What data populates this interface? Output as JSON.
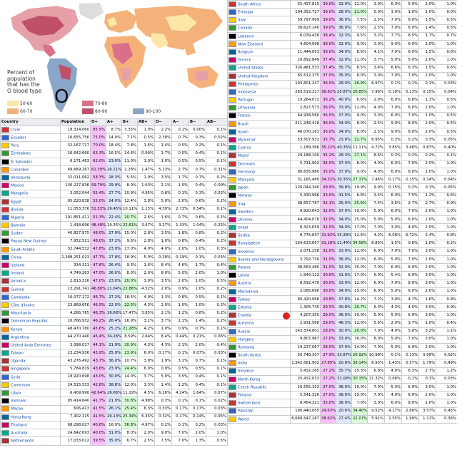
{
  "map": {
    "legend_lines": [
      "Percent of",
      "population",
      "that has the",
      "O blood type"
    ],
    "big_letter": "O",
    "legend_items": [
      {
        "label": "50-60",
        "color": "#fde7a8"
      },
      {
        "label": "60-70",
        "color": "#f4b27a"
      },
      {
        "label": "70-80",
        "color": "#d9708a"
      },
      {
        "label": "80-90",
        "color": "#c0506a"
      },
      {
        "label": "90-100",
        "color": "#8aa6c8"
      }
    ]
  },
  "table_headers": [
    "Country",
    "Population",
    "O+",
    "A+",
    "B+",
    "AB+",
    "O−",
    "A−",
    "B−",
    "AB−"
  ],
  "left_rows": [
    [
      "Chile",
      "18,314,060",
      "85.5%",
      "8.7%",
      "3.35%",
      "1.0%",
      "2.2%",
      "0.1%",
      "0.00%",
      "0.1%"
    ],
    [
      "Ecuador",
      "16,655,756",
      "75.0%",
      "14.0%",
      "7.1%",
      "0.5%",
      "2.38%",
      "0.7%",
      "0.3%",
      "0.02%"
    ],
    [
      "Peru",
      "32,167,717",
      "70.0%",
      "18.4%",
      "7.8%",
      "1.6%",
      "1.4%",
      "0.5%",
      "0.2%",
      "0.1%"
    ],
    [
      "Zimbabwe",
      "16,642,660",
      "63.3%",
      "16.5%",
      "14.6%",
      "0.99%",
      "1.7%",
      "0.5%",
      "0.4%",
      "0.1%"
    ],
    [
      "El Salvador",
      "6,171,483",
      "62.0%",
      "23.0%",
      "11.0%",
      "1.0%",
      "1.0%",
      "0.5%",
      "0.5%",
      "0.1%"
    ],
    [
      "Colombia",
      "49,669,267",
      "61.30%",
      "26.11%",
      "2.28%",
      "1.47%",
      "5.13%",
      "2.7%",
      "0.7%",
      "0.31%"
    ],
    [
      "Venezuela",
      "32,011,062",
      "58.3%",
      "28.3%",
      "5.6%",
      "1.9%",
      "3.5%",
      "1.7%",
      "0.7%",
      "0.2%"
    ],
    [
      "Mexico",
      "130,227,836",
      "59.79%",
      "29.9%",
      "8.0%",
      "1.63%",
      "2.1%",
      "1.5%",
      "0.4%",
      "0.09%"
    ],
    [
      "Mongolia",
      "3,052,044",
      "55.4%",
      "27.7%",
      "10.9%",
      "4.95%",
      "0.6%",
      "0.1%",
      "0.3%",
      "0.02%"
    ],
    [
      "Egypt",
      "95,220,838",
      "52.0%",
      "24.0%",
      "12.4%",
      "3.8%",
      "5.0%",
      "2.0%",
      "0.6%",
      "0.2%"
    ],
    [
      "Bolivia",
      "11,053,376",
      "51.53%",
      "29.45%",
      "10.11%",
      "1.15%",
      "4.39%",
      "2.73%",
      "0.54%",
      "0.1%"
    ],
    [
      "Nigeria",
      "191,851,411",
      "51.3%",
      "22.4%",
      "20.7%",
      "2.6%",
      "1.6%",
      "0.7%",
      "0.6%",
      "0.1%"
    ],
    [
      "Bahrain",
      "1,418,696",
      "48.48%",
      "19.35%",
      "22.61%",
      "3.67%",
      "3.27%",
      "1.33%",
      "1.04%",
      "0.25%"
    ],
    [
      "Sudan",
      "40,827,975",
      "48.0%",
      "27.9%",
      "15.0%",
      "2.8%",
      "3.5%",
      "1.8%",
      "0.8%",
      "0.2%"
    ],
    [
      "Papua New Guinea",
      "7,952,511",
      "48.0%",
      "37.2%",
      "9.6%",
      "2.8%",
      "1.0%",
      "0.8%",
      "0.4%",
      "0.2%"
    ],
    [
      "Saudi Arabia",
      "32,744,532",
      "47.8%",
      "23.9%",
      "17.0%",
      "4.0%",
      "4.0%",
      "2.0%",
      "1.0%",
      "0.3%"
    ],
    [
      "China",
      "1,388,251,023",
      "47.7%",
      "27.8%",
      "18.9%",
      "5.0%",
      "0.28%",
      "0.19%",
      "0.1%",
      "0.03%"
    ],
    [
      "Iceland",
      "334,311",
      "47.6%",
      "26.4%",
      "9.3%",
      "1.6%",
      "8.4%",
      "4.6%",
      "1.7%",
      "0.4%"
    ],
    [
      "Ireland",
      "4,749,263",
      "47.0%",
      "26.0%",
      "8.0%",
      "2.0%",
      "8.0%",
      "5.0%",
      "2.0%",
      "1.0%"
    ],
    [
      "Jamaica",
      "2,813,316",
      "47.0%",
      "23.0%",
      "20.0%",
      "3.0%",
      "3.5%",
      "2.0%",
      "1.0%",
      "0.5%"
    ],
    [
      "Guinea",
      "13,291,741",
      "46.88%",
      "21.64%",
      "22.86%",
      "4.52%",
      "2.0%",
      "0.9%",
      "1.0%",
      "0.2%"
    ],
    [
      "Cambodia",
      "16,077,172",
      "46.7%",
      "27.2%",
      "18.5%",
      "4.9%",
      "1.3%",
      "0.8%",
      "0.5%",
      "0.1%"
    ],
    [
      "Côte d'Ivoire",
      "23,869,656",
      "46.5%",
      "22.0%",
      "22.5%",
      "4.3%",
      "2.0%",
      "1.0%",
      "1.0%",
      "0.2%"
    ],
    [
      "Mauritania",
      "4,266,765",
      "46.3%",
      "26.68%",
      "17.47%",
      "3.85%",
      "2.1%",
      "1.2%",
      "0.8%",
      "0.2%"
    ],
    [
      "Dominican Republic",
      "10,766,932",
      "46.2%",
      "26.4%",
      "16.9%",
      "3.1%",
      "3.7%",
      "2.1%",
      "1.4%",
      "0.2%"
    ],
    [
      "Kenya",
      "48,470,780",
      "45.6%",
      "25.2%",
      "21.28%",
      "4.2%",
      "1.0%",
      "0.9%",
      "0.7%",
      "0.1%"
    ],
    [
      "Argentina",
      "44,270,440",
      "45.4%",
      "34.26%",
      "8.59%",
      "2.64%",
      "8.4%",
      "0.44%",
      "0.21%",
      "0.06%"
    ],
    [
      "United Arab Emirates",
      "3,398,017",
      "44.1%",
      "21.9%",
      "20.9%",
      "4.3%",
      "4.3%",
      "2.1%",
      "2.0%",
      "0.4%"
    ],
    [
      "Taiwan",
      "23,234,936",
      "43.9%",
      "25.9%",
      "23.9%",
      "6.0%",
      "0.17%",
      "0.1%",
      "0.07%",
      "0.03%"
    ],
    [
      "Uganda",
      "43,276,492",
      "43.7%",
      "36.0%",
      "10.7%",
      "3.9%",
      "1.9%",
      "3.1%",
      "0.7%",
      "0.1%"
    ],
    [
      "Singapore",
      "5,784,819",
      "43.6%",
      "23.9%",
      "24.4%",
      "6.0%",
      "0.9%",
      "0.5%",
      "0.5%",
      "0.1%"
    ],
    [
      "Syria",
      "18,920,698",
      "43.0%",
      "30.0%",
      "14.0%",
      "3.7%",
      "5.0%",
      "3.5%",
      "0.4%",
      "0.1%"
    ],
    [
      "Cameroon",
      "24,515,533",
      "42.8%",
      "38.8%",
      "12.0%",
      "3.3%",
      "1.4%",
      "1.2%",
      "0.4%",
      "0.1%"
    ],
    [
      "Libya",
      "6,409,990",
      "42.64%",
      "26.66%",
      "11.19%",
      "4.5%",
      "6.26%",
      "4.24%",
      "1.64%",
      "0.07%"
    ],
    [
      "Vietnam",
      "95,414,640",
      "41.7%",
      "21.9%",
      "30.8%",
      "4.98%",
      "0.3%",
      "0.1%",
      "0.1%",
      "0.02%"
    ],
    [
      "Macao",
      "606,413",
      "41.5%",
      "26.1%",
      "25.4%",
      "6.3%",
      "0.33%",
      "0.17%",
      "0.17%",
      "0.03%"
    ],
    [
      "Hong Kong",
      "7,402,115",
      "41.5%",
      "26.13%",
      "25.34%",
      "6.35%",
      "0.32%",
      "0.17%",
      "0.14%",
      "0.05%"
    ],
    [
      "Thailand",
      "68,298,027",
      "40.8%",
      "16.9%",
      "36.8%",
      "4.97%",
      "0.2%",
      "0.1%",
      "0.2%",
      "0.03%"
    ],
    [
      "Australia",
      "24,642,693",
      "40.0%",
      "31.0%",
      "8.0%",
      "2.0%",
      "9.0%",
      "7.0%",
      "2.0%",
      "1.0%"
    ],
    [
      "Netherlands",
      "17,033,012",
      "39.5%",
      "35.0%",
      "6.7%",
      "2.5%",
      "7.5%",
      "7.0%",
      "1.3%",
      "0.5%"
    ]
  ],
  "right_rows": [
    [
      "South Africa",
      "55,437,815",
      "39.0%",
      "32.0%",
      "12.0%",
      "3.0%",
      "6.0%",
      "5.0%",
      "2.0%",
      "1.0%"
    ],
    [
      "Ethiopia",
      "104,352,727",
      "39.0%",
      "28.0%",
      "21.0%",
      "5.0%",
      "3.0%",
      "1.0%",
      "1.0%",
      "0.0%"
    ],
    [
      "Italy",
      "59,797,969",
      "39.0%",
      "36.0%",
      "7.5%",
      "2.5%",
      "7.0%",
      "6.0%",
      "1.5%",
      "0.5%"
    ],
    [
      "Canada",
      "36,627,140",
      "39.0%",
      "36.0%",
      "7.6%",
      "2.5%",
      "7.0%",
      "6.0%",
      "1.4%",
      "0.5%"
    ],
    [
      "Lebanon",
      "6,039,438",
      "38.4%",
      "32.3%",
      "9.5%",
      "3.2%",
      "7.7%",
      "6.5%",
      "1.7%",
      "0.7%"
    ],
    [
      "New Zealand",
      "4,604,998",
      "38.0%",
      "32.0%",
      "9.0%",
      "3.0%",
      "9.0%",
      "6.0%",
      "2.0%",
      "1.0%"
    ],
    [
      "Belgium",
      "11,444,053",
      "38.0%",
      "34.0%",
      "8.6%",
      "4.1%",
      "7.0%",
      "6.0%",
      "1.5%",
      "0.8%"
    ],
    [
      "Greece",
      "10,892,849",
      "37.4%",
      "32.9%",
      "11.0%",
      "3.7%",
      "5.0%",
      "5.0%",
      "2.0%",
      "1.0%"
    ],
    [
      "United States",
      "326,481,533",
      "37.4%",
      "35.7%",
      "8.5%",
      "3.4%",
      "6.6%",
      "6.3%",
      "1.5%",
      "0.6%"
    ],
    [
      "United Kingdom",
      "65,512,375",
      "37.0%",
      "35.0%",
      "8.0%",
      "3.0%",
      "7.0%",
      "7.0%",
      "2.0%",
      "1.0%"
    ],
    [
      "Philippines",
      "103,801,247",
      "36.0%",
      "28.0%",
      "26.9%",
      "6.97%",
      "0.1%",
      "0.1%",
      "0.1%",
      "0.03%"
    ],
    [
      "Indonesia",
      "263,519,317",
      "36.82%",
      "25.87%",
      "28.85%",
      "7.96%",
      "0.18%",
      "0.13%",
      "0.15%",
      "0.04%"
    ],
    [
      "Portugal",
      "10,264,072",
      "36.2%",
      "40.0%",
      "6.6%",
      "2.9%",
      "6.0%",
      "6.6%",
      "1.1%",
      "0.5%"
    ],
    [
      "Lithuania",
      "2,827,573",
      "36.0%",
      "33.0%",
      "11.0%",
      "4.0%",
      "7.0%",
      "6.0%",
      "2.0%",
      "1.0%"
    ],
    [
      "France",
      "64,938,560",
      "36.0%",
      "37.0%",
      "9.0%",
      "3.0%",
      "6.0%",
      "7.0%",
      "1.0%",
      "0.5%"
    ],
    [
      "Brazil",
      "211,248,418",
      "36.0%",
      "34.0%",
      "8.0%",
      "2.5%",
      "9.0%",
      "8.0%",
      "2.0%",
      "0.5%"
    ],
    [
      "Spain",
      "46,070,163",
      "36.0%",
      "34.0%",
      "8.0%",
      "2.5%",
      "9.0%",
      "8.0%",
      "2.0%",
      "0.5%"
    ],
    [
      "Myanmar",
      "53,507,932",
      "35.7%",
      "23.8%",
      "32.7%",
      "6.95%",
      "0.3%",
      "0.2%",
      "0.3%",
      "0.05%"
    ],
    [
      "Cyprus",
      "1,189,366",
      "35.22%",
      "40.35%",
      "11.11%",
      "4.72%",
      "3.85%",
      "3.48%",
      "0.87%",
      "0.40%"
    ],
    [
      "Nepal",
      "29,188,100",
      "35.2%",
      "28.3%",
      "27.1%",
      "8.6%",
      "0.3%",
      "0.2%",
      "0.2%",
      "0.1%"
    ],
    [
      "Denmark",
      "5,711,902",
      "35.0%",
      "37.0%",
      "8.0%",
      "4.0%",
      "6.0%",
      "7.0%",
      "2.0%",
      "1.0%"
    ],
    [
      "Germany",
      "80,635,980",
      "35.0%",
      "37.0%",
      "9.0%",
      "4.0%",
      "6.0%",
      "6.0%",
      "1.0%",
      "1.0%"
    ],
    [
      "Malaysia",
      "31,165,480",
      "34.32%",
      "30.35%",
      "27.37%",
      "7.46%",
      "0.17%",
      "0.15%",
      "0.14%",
      "0.04%"
    ],
    [
      "Japan",
      "126,044,340",
      "29.9%",
      "39.8%",
      "19.9%",
      "9.9%",
      "0.15%",
      "0.2%",
      "0.1%",
      "0.05%"
    ],
    [
      "Norway",
      "5,330,966",
      "33.0%",
      "41.5%",
      "6.8%",
      "3.4%",
      "6.0%",
      "7.5%",
      "1.2%",
      "0.6%"
    ],
    [
      "Iraq",
      "38,657,787",
      "32.1%",
      "25.0%",
      "25.6%",
      "7.4%",
      "3.6%",
      "2.7%",
      "2.7%",
      "0.9%"
    ],
    [
      "Sweden",
      "9,920,643",
      "32.0%",
      "37.0%",
      "10.0%",
      "5.0%",
      "6.0%",
      "7.0%",
      "2.0%",
      "1.0%"
    ],
    [
      "Ukraine",
      "44,404,078",
      "32.0%",
      "34.0%",
      "15.0%",
      "5.0%",
      "5.0%",
      "6.0%",
      "2.0%",
      "1.0%"
    ],
    [
      "Israel",
      "8,323,659",
      "32.0%",
      "34.0%",
      "17.0%",
      "7.0%",
      "3.0%",
      "4.0%",
      "2.0%",
      "1.0%"
    ],
    [
      "Serbia",
      "8,776,637",
      "31.92%",
      "35.28%",
      "12.6%",
      "4.2%",
      "6.08%",
      "6.72%",
      "2.4%",
      "0.8%"
    ],
    [
      "Bangladesh",
      "164,633,657",
      "31.18%",
      "21.44%",
      "34.58%",
      "8.85%",
      "1.5%",
      "0.8%",
      "1.0%",
      "0.2%"
    ],
    [
      "Slovenia",
      "2,071,258",
      "31.0%",
      "33.0%",
      "12.0%",
      "6.0%",
      "7.0%",
      "7.0%",
      "3.0%",
      "1.0%"
    ],
    [
      "Bosnia and Herzegovina",
      "3,792,730",
      "31.0%",
      "36.0%",
      "12.0%",
      "6.0%",
      "5.0%",
      "7.0%",
      "2.0%",
      "1.0%"
    ],
    [
      "Poland",
      "38,563,480",
      "31.0%",
      "32.0%",
      "15.0%",
      "7.0%",
      "6.0%",
      "6.0%",
      "2.0%",
      "1.0%"
    ],
    [
      "Latvia",
      "1,944,122",
      "30.6%",
      "31.0%",
      "17.0%",
      "6.0%",
      "5.4%",
      "6.0%",
      "3.0%",
      "1.0%"
    ],
    [
      "Austria",
      "8,592,470",
      "30.0%",
      "33.0%",
      "12.0%",
      "6.0%",
      "7.0%",
      "8.0%",
      "3.0%",
      "1.0%"
    ],
    [
      "Macedonia",
      "2,085,690",
      "30.0%",
      "34.0%",
      "15.0%",
      "6.0%",
      "5.0%",
      "6.0%",
      "2.0%",
      "1.0%"
    ],
    [
      "Turkey",
      "80,420,066",
      "29.8%",
      "37.8%",
      "14.2%",
      "7.2%",
      "3.9%",
      "4.7%",
      "1.6%",
      "0.8%"
    ],
    [
      "Estonia",
      "1,305,745",
      "29.5%",
      "30.8%",
      "20.7%",
      "6.3%",
      "4.3%",
      "4.5%",
      "3.0%",
      "0.9%"
    ],
    [
      "Croatia",
      "4,207,355",
      "29.0%",
      "36.0%",
      "15.0%",
      "5.0%",
      "5.0%",
      "6.0%",
      "3.0%",
      "1.0%"
    ],
    [
      "Armenia",
      "2,931,568",
      "29.0%",
      "46.3%",
      "12.0%",
      "5.6%",
      "2.0%",
      "3.7%",
      "1.0%",
      "0.4%"
    ],
    [
      "Russia",
      "143,374,801",
      "28.0%",
      "30.0%",
      "20.0%",
      "7.0%",
      "4.9%",
      "5.8%",
      "3.2%",
      "1.1%"
    ],
    [
      "Hungary",
      "9,807,967",
      "27.0%",
      "33.0%",
      "16.0%",
      "8.0%",
      "5.0%",
      "7.0%",
      "3.0%",
      "1.0%"
    ],
    [
      "Romania",
      "19,237,067",
      "28.0%",
      "37.0%",
      "14.0%",
      "7.0%",
      "5.0%",
      "6.0%",
      "2.0%",
      "1.0%"
    ],
    [
      "South Korea",
      "50,748,307",
      "27.9%",
      "33.87%",
      "26.92%",
      "10.98%",
      "0.1%",
      "0.13%",
      "0.08%",
      "0.02%"
    ],
    [
      "India",
      "1,342,561,902",
      "27.85%",
      "20.8%",
      "38.14%",
      "8.93%",
      "1.43%",
      "0.57%",
      "1.79%",
      "0.49%"
    ],
    [
      "Slovakia",
      "5,432,265",
      "27.2%",
      "35.7%",
      "15.3%",
      "6.8%",
      "4.8%",
      "6.3%",
      "2.7%",
      "1.2%"
    ],
    [
      "North Korea",
      "25,432,033",
      "27.2%",
      "31.08%",
      "30.15%",
      "11.32%",
      "0.08%",
      "0.1%",
      "0.1%",
      "0.03%"
    ],
    [
      "Czech Republic",
      "10,555,152",
      "27.0%",
      "36.0%",
      "15.0%",
      "7.0%",
      "5.0%",
      "6.0%",
      "3.0%",
      "1.0%"
    ],
    [
      "Finland",
      "5,541,326",
      "27.0%",
      "38.0%",
      "15.0%",
      "7.0%",
      "4.0%",
      "6.0%",
      "2.0%",
      "1.0%"
    ],
    [
      "Switzerland",
      "8,454,321",
      "35.0%",
      "38.0%",
      "7.0%",
      "3.0%",
      "6.0%",
      "8.0%",
      "1.0%",
      "1.0%"
    ],
    [
      "Pakistan",
      "180,440,005",
      "24.63%",
      "20.6%",
      "34.40%",
      "9.52%",
      "4.17%",
      "2.66%",
      "3.57%",
      "0.45%"
    ],
    [
      "World",
      "6,668,547,287",
      "38.62%",
      "27.4%",
      "22.07%",
      "5.91%",
      "2.55%",
      "1.99%",
      "1.11%",
      "0.36%"
    ]
  ]
}
